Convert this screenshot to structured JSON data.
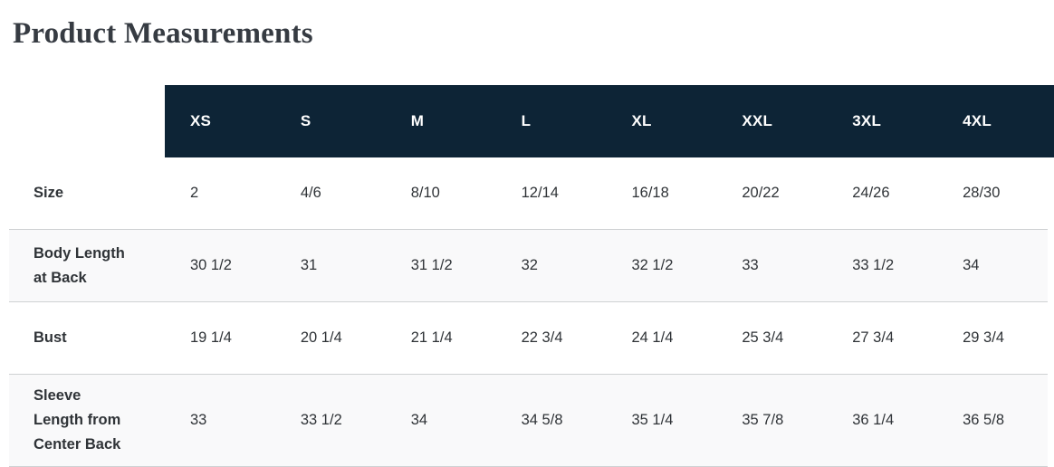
{
  "page": {
    "title": "Product Measurements"
  },
  "table": {
    "columns": [
      "XS",
      "S",
      "M",
      "L",
      "XL",
      "XXL",
      "3XL",
      "4XL"
    ],
    "rows": [
      {
        "label": "Size",
        "values": [
          "2",
          "4/6",
          "8/10",
          "12/14",
          "16/18",
          "20/22",
          "24/26",
          "28/30"
        ]
      },
      {
        "label": "Body Length at Back",
        "values": [
          "30 1/2",
          "31",
          "31 1/2",
          "32",
          "32 1/2",
          "33",
          "33 1/2",
          "34"
        ]
      },
      {
        "label": "Bust",
        "values": [
          "19 1/4",
          "20 1/4",
          "21 1/4",
          "22 3/4",
          "24 1/4",
          "25 3/4",
          "27 3/4",
          "29 3/4"
        ]
      },
      {
        "label": "Sleeve Length from Center Back",
        "values": [
          "33",
          "33 1/2",
          "34",
          "34 5/8",
          "35 1/4",
          "35 7/8",
          "36 1/4",
          "36 5/8"
        ]
      }
    ]
  },
  "colors": {
    "header_bg": "#0d2436",
    "header_text": "#ffffff",
    "title_text": "#363b42",
    "body_text": "#2f3337",
    "border": "#cfd1d3",
    "alt_row_bg": "#f9f9fa"
  }
}
